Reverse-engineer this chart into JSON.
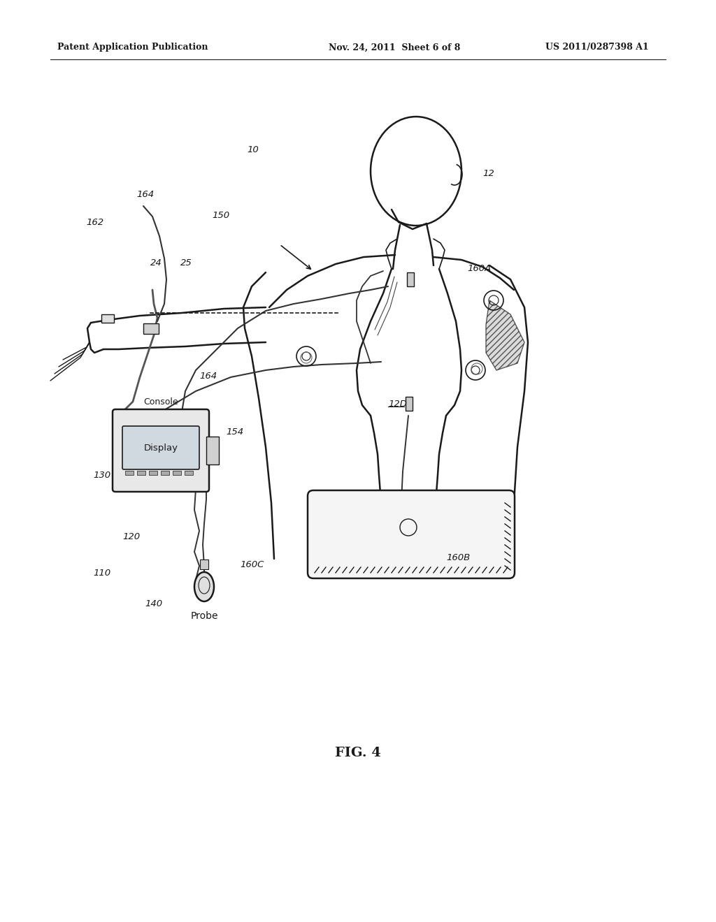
{
  "bg_color": "#ffffff",
  "line_color": "#1a1a1a",
  "header_left": "Patent Application Publication",
  "header_center": "Nov. 24, 2011  Sheet 6 of 8",
  "header_right": "US 2011/0287398 A1",
  "fig_label": "FIG. 4"
}
